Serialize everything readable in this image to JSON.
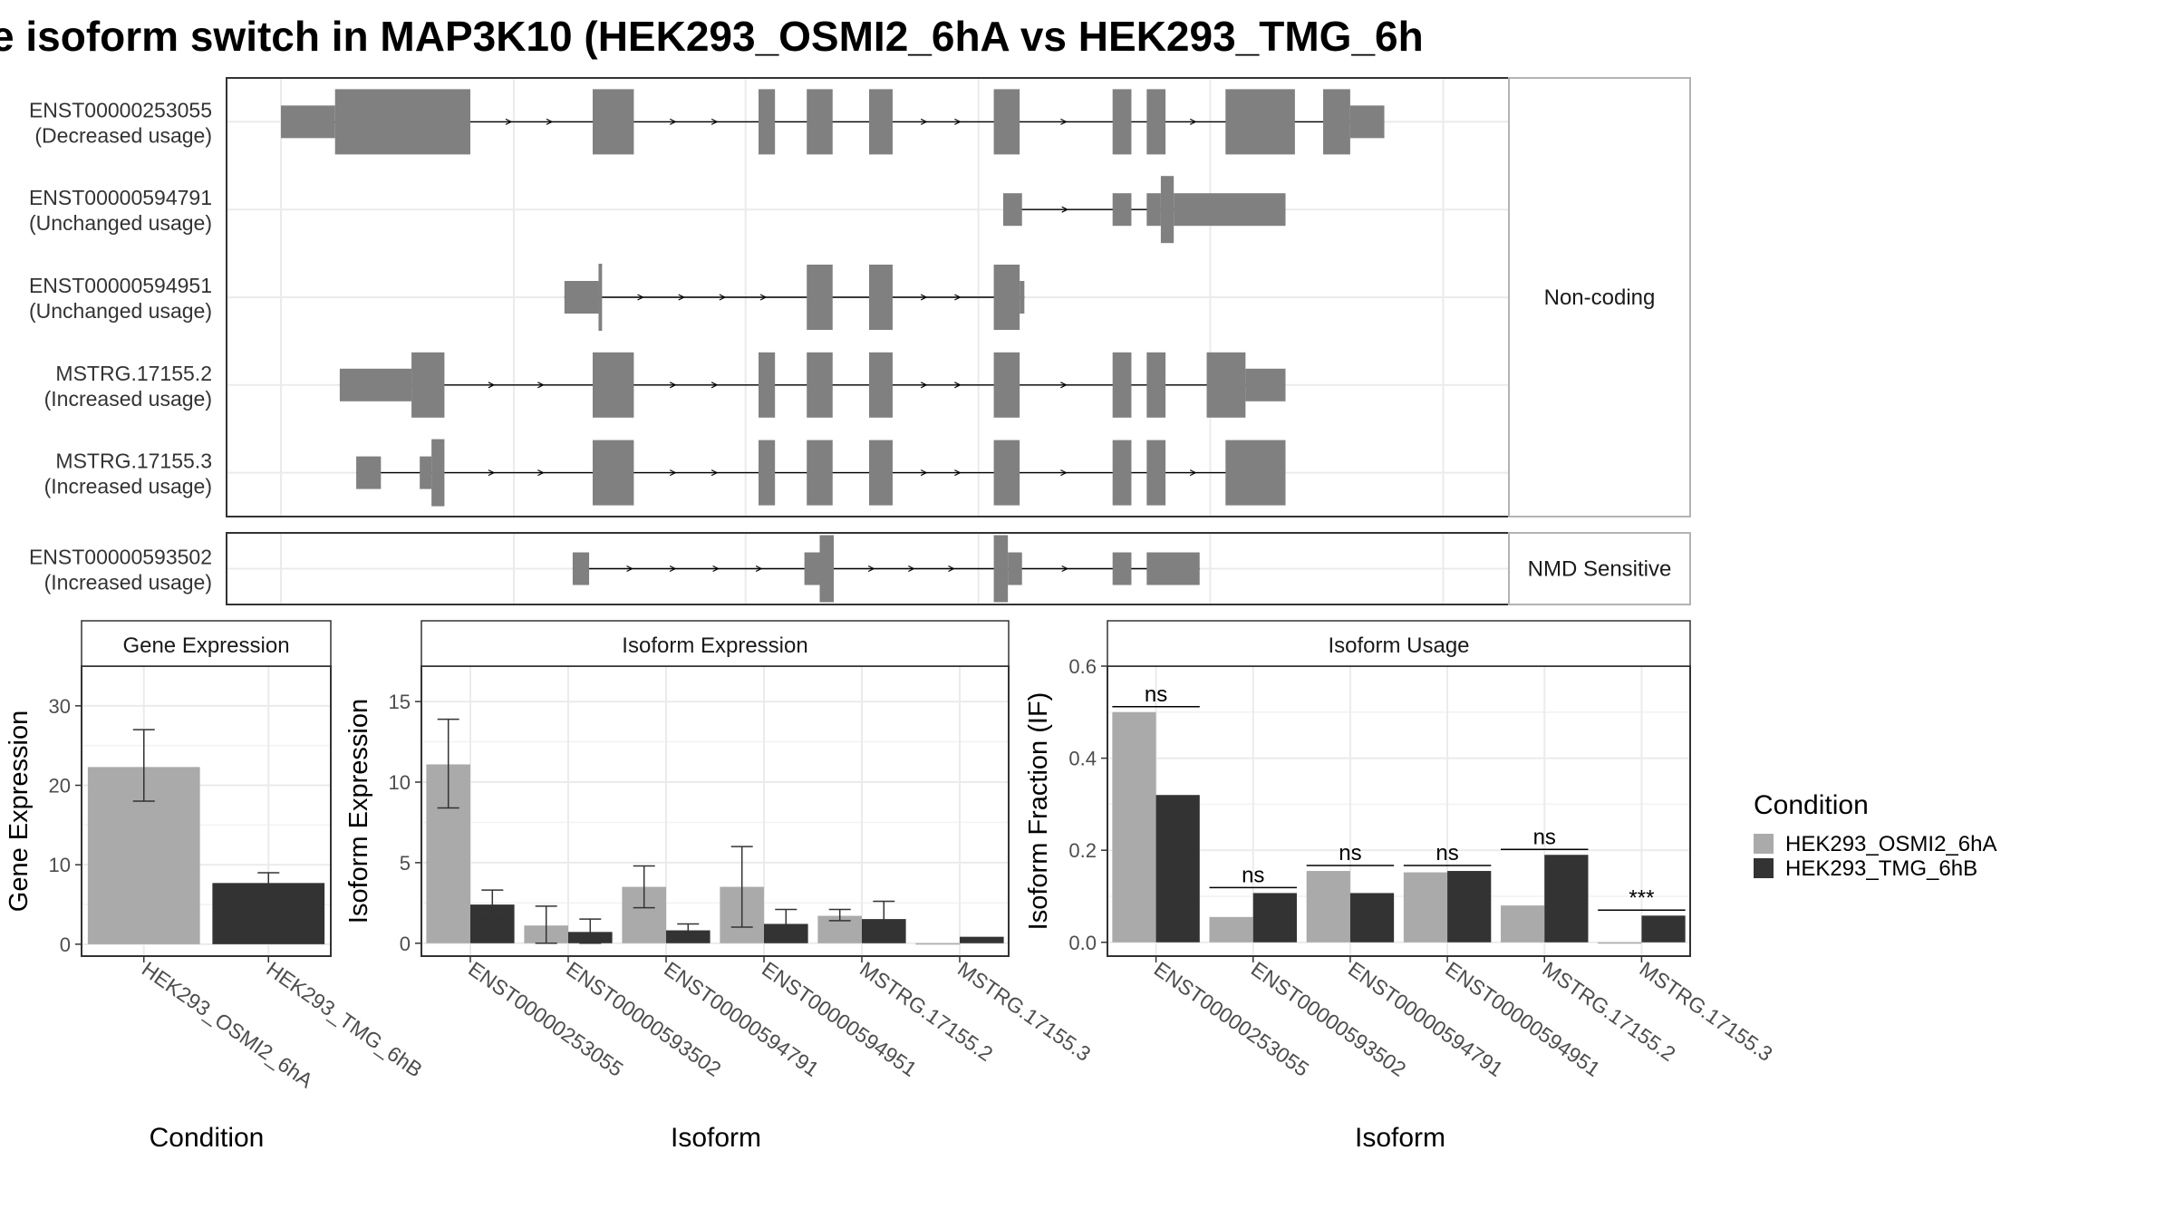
{
  "figure": {
    "title": "e isoform switch in MAP3K10 (HEK293_OSMI2_6hA vs HEK293_TMG_6h",
    "colors": {
      "exon": "#808080",
      "cond_a": "#AAAAAA",
      "cond_b": "#333333",
      "panel_border": "#333333",
      "strip_fill": "#FFFFFF",
      "grid": "#EBEBEB"
    }
  },
  "transcripts": {
    "panels": [
      {
        "label": "Non-coding",
        "tracks": [
          {
            "id": "ENST00000253055",
            "usage": "(Decreased usage)",
            "exons": [
              [
                0.0,
                0.046,
                "utr"
              ],
              [
                0.046,
                0.161,
                "cds"
              ],
              [
                0.265,
                0.3,
                "cds"
              ],
              [
                0.406,
                0.42,
                "cds"
              ],
              [
                0.447,
                0.469,
                "cds"
              ],
              [
                0.5,
                0.52,
                "cds"
              ],
              [
                0.606,
                0.628,
                "cds"
              ],
              [
                0.707,
                0.723,
                "cds"
              ],
              [
                0.736,
                0.752,
                "cds"
              ],
              [
                0.803,
                0.862,
                "cds"
              ],
              [
                0.886,
                0.909,
                "cds"
              ],
              [
                0.909,
                0.938,
                "utr"
              ]
            ]
          },
          {
            "id": "ENST00000594791",
            "usage": "(Unchanged usage)",
            "exons": [
              [
                0.614,
                0.63,
                "utr"
              ],
              [
                0.707,
                0.723,
                "utr"
              ],
              [
                0.736,
                0.748,
                "utr"
              ],
              [
                0.748,
                0.759,
                "tall"
              ],
              [
                0.759,
                0.854,
                "utr"
              ]
            ]
          },
          {
            "id": "ENST00000594951",
            "usage": "(Unchanged usage)",
            "exons": [
              [
                0.241,
                0.27,
                "utr"
              ],
              [
                0.27,
                0.273,
                "tall"
              ],
              [
                0.447,
                0.469,
                "cds"
              ],
              [
                0.5,
                0.52,
                "cds"
              ],
              [
                0.606,
                0.628,
                "cds"
              ],
              [
                0.628,
                0.632,
                "utr"
              ]
            ]
          },
          {
            "id": "MSTRG.17155.2",
            "usage": "(Increased usage)",
            "exons": [
              [
                0.05,
                0.111,
                "utr"
              ],
              [
                0.111,
                0.139,
                "cds"
              ],
              [
                0.265,
                0.3,
                "cds"
              ],
              [
                0.406,
                0.42,
                "cds"
              ],
              [
                0.447,
                0.469,
                "cds"
              ],
              [
                0.5,
                0.52,
                "cds"
              ],
              [
                0.606,
                0.628,
                "cds"
              ],
              [
                0.707,
                0.723,
                "cds"
              ],
              [
                0.736,
                0.752,
                "cds"
              ],
              [
                0.787,
                0.82,
                "cds"
              ],
              [
                0.82,
                0.854,
                "utr"
              ]
            ]
          },
          {
            "id": "MSTRG.17155.3",
            "usage": "(Increased usage)",
            "exons": [
              [
                0.064,
                0.085,
                "utr"
              ],
              [
                0.118,
                0.128,
                "utr"
              ],
              [
                0.128,
                0.139,
                "tall"
              ],
              [
                0.265,
                0.3,
                "cds"
              ],
              [
                0.406,
                0.42,
                "cds"
              ],
              [
                0.447,
                0.469,
                "cds"
              ],
              [
                0.5,
                0.52,
                "cds"
              ],
              [
                0.606,
                0.628,
                "cds"
              ],
              [
                0.707,
                0.723,
                "cds"
              ],
              [
                0.736,
                0.752,
                "cds"
              ],
              [
                0.803,
                0.854,
                "cds"
              ]
            ]
          }
        ]
      },
      {
        "label": "NMD Sensitive",
        "tracks": [
          {
            "id": "ENST00000593502",
            "usage": "(Increased usage)",
            "exons": [
              [
                0.248,
                0.262,
                "utr"
              ],
              [
                0.445,
                0.458,
                "utr"
              ],
              [
                0.458,
                0.47,
                "tall"
              ],
              [
                0.606,
                0.618,
                "tall"
              ],
              [
                0.618,
                0.63,
                "utr"
              ],
              [
                0.707,
                0.723,
                "utr"
              ],
              [
                0.736,
                0.781,
                "utr"
              ]
            ]
          }
        ]
      }
    ]
  },
  "chart_data": [
    {
      "type": "bar",
      "title": "Gene Expression",
      "xlabel": "Condition",
      "ylabel": "Gene Expression",
      "ylim": [
        -1.5,
        35
      ],
      "yticks": [
        0,
        10,
        20,
        30
      ],
      "categories": [
        "HEK293_OSMI2_6hA",
        "HEK293_TMG_6hB"
      ],
      "series": [
        {
          "name": "HEK293_OSMI2_6hA",
          "values": [
            22.3,
            null
          ],
          "err_low": [
            18.0,
            null
          ],
          "err_high": [
            27.0,
            null
          ]
        },
        {
          "name": "HEK293_TMG_6hB",
          "values": [
            null,
            7.7
          ],
          "err_low": [
            null,
            6.5
          ],
          "err_high": [
            null,
            9.0
          ]
        }
      ]
    },
    {
      "type": "bar",
      "title": "Isoform Expression",
      "xlabel": "Isoform",
      "ylabel": "Isoform Expression",
      "ylim": [
        -0.8,
        17.2
      ],
      "yticks": [
        0,
        5,
        10,
        15
      ],
      "categories": [
        "ENST00000253055",
        "ENST00000593502",
        "ENST00000594791",
        "ENST00000594951",
        "MSTRG.17155.2",
        "MSTRG.17155.3"
      ],
      "series": [
        {
          "name": "HEK293_OSMI2_6hA",
          "values": [
            11.1,
            1.1,
            3.5,
            3.5,
            1.7,
            0.0
          ],
          "err_low": [
            8.4,
            0.0,
            2.2,
            1.0,
            1.4,
            null
          ],
          "err_high": [
            13.9,
            2.3,
            4.8,
            6.0,
            2.1,
            null
          ]
        },
        {
          "name": "HEK293_TMG_6hB",
          "values": [
            2.4,
            0.7,
            0.8,
            1.2,
            1.5,
            0.4
          ],
          "err_low": [
            1.5,
            0.0,
            0.4,
            0.3,
            0.4,
            null
          ],
          "err_high": [
            3.3,
            1.5,
            1.2,
            2.1,
            2.6,
            null
          ]
        }
      ]
    },
    {
      "type": "bar",
      "title": "Isoform Usage",
      "xlabel": "Isoform",
      "ylabel": "Isoform Fraction (IF)",
      "ylim": [
        -0.03,
        0.6
      ],
      "yticks": [
        0.0,
        0.2,
        0.4,
        0.6
      ],
      "ytick_labels": [
        "0.0",
        "0.2",
        "0.4",
        "0.6"
      ],
      "categories": [
        "ENST00000253055",
        "ENST00000593502",
        "ENST00000594791",
        "ENST00000594951",
        "MSTRG.17155.2",
        "MSTRG.17155.3"
      ],
      "series": [
        {
          "name": "HEK293_OSMI2_6hA",
          "values": [
            0.5,
            0.055,
            0.155,
            0.152,
            0.08,
            0.0
          ]
        },
        {
          "name": "HEK293_TMG_6hB",
          "values": [
            0.32,
            0.107,
            0.107,
            0.155,
            0.19,
            0.058
          ]
        }
      ],
      "significance": [
        "ns",
        "ns",
        "ns",
        "ns",
        "ns",
        "***"
      ]
    }
  ],
  "legend": {
    "title": "Condition",
    "items": [
      {
        "label": "HEK293_OSMI2_6hA",
        "color": "#AAAAAA"
      },
      {
        "label": "HEK293_TMG_6hB",
        "color": "#333333"
      }
    ]
  }
}
